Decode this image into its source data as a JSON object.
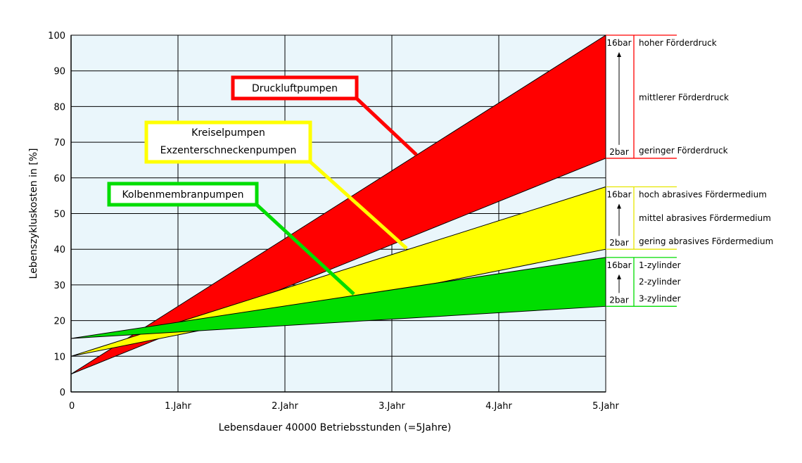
{
  "chart_data": {
    "type": "area",
    "xlabel": "Lebensdauer 40000 Betriebsstunden (=5Jahre)",
    "ylabel": "Lebenszykluskosten in [%]",
    "x": [
      0,
      5
    ],
    "xticks": [
      {
        "value": 0,
        "label": "0"
      },
      {
        "value": 1,
        "label": "1.Jahr"
      },
      {
        "value": 2,
        "label": "2.Jahr"
      },
      {
        "value": 3,
        "label": "3.Jahr"
      },
      {
        "value": 4,
        "label": "4.Jahr"
      },
      {
        "value": 5,
        "label": "5.Jahr"
      }
    ],
    "yticks": [
      0,
      10,
      20,
      30,
      40,
      50,
      60,
      70,
      80,
      90,
      100
    ],
    "xlim": [
      0,
      5
    ],
    "ylim": [
      0,
      100
    ],
    "grid": true,
    "background": "#eaf6fb",
    "series": [
      {
        "name": "Druckluftpumpen",
        "color": "#ff0000",
        "start": 5,
        "low_end": 65.5,
        "high_end": 100,
        "low_label": "2bar",
        "high_label": "16bar",
        "annotations": [
          "hoher Förderdruck",
          "mittlerer Förderdruck",
          "geringer Förderdruck"
        ]
      },
      {
        "name": "Kreiselpumpen Exzenterschneckenpumpen",
        "name_lines": [
          "Kreiselpumpen",
          "Exzenterschneckenpumpen"
        ],
        "color": "#ffff00",
        "start": 10,
        "low_end": 40,
        "high_end": 57.5,
        "low_label": "2bar",
        "high_label": "16bar",
        "annotations": [
          "hoch abrasives Fördermedium",
          "mittel abrasives Fördermedium",
          "gering abrasives Fördermedium"
        ]
      },
      {
        "name": "Kolbenmembranpumpen",
        "color": "#00dd00",
        "start": 15,
        "low_end": 24,
        "high_end": 37.7,
        "low_label": "2bar",
        "high_label": "16bar",
        "annotations": [
          "1-zylinder",
          "2-zylinder",
          "3-zylinder"
        ]
      }
    ]
  }
}
